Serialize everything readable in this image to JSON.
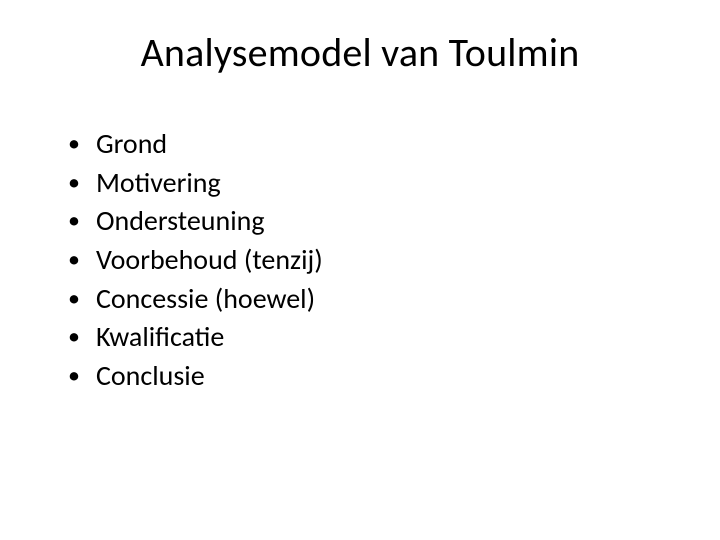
{
  "slide": {
    "title": "Analysemodel van Toulmin",
    "title_fontsize": 40,
    "title_color": "#000000",
    "body_fontsize": 28,
    "body_color": "#000000",
    "background_color": "#ffffff",
    "font_family": "Calibri",
    "bullets": [
      "Grond",
      "Motivering",
      "Ondersteuning",
      "Voorbehoud (tenzij)",
      "Concessie (hoewel)",
      "Kwalificatie",
      "Conclusie"
    ]
  }
}
